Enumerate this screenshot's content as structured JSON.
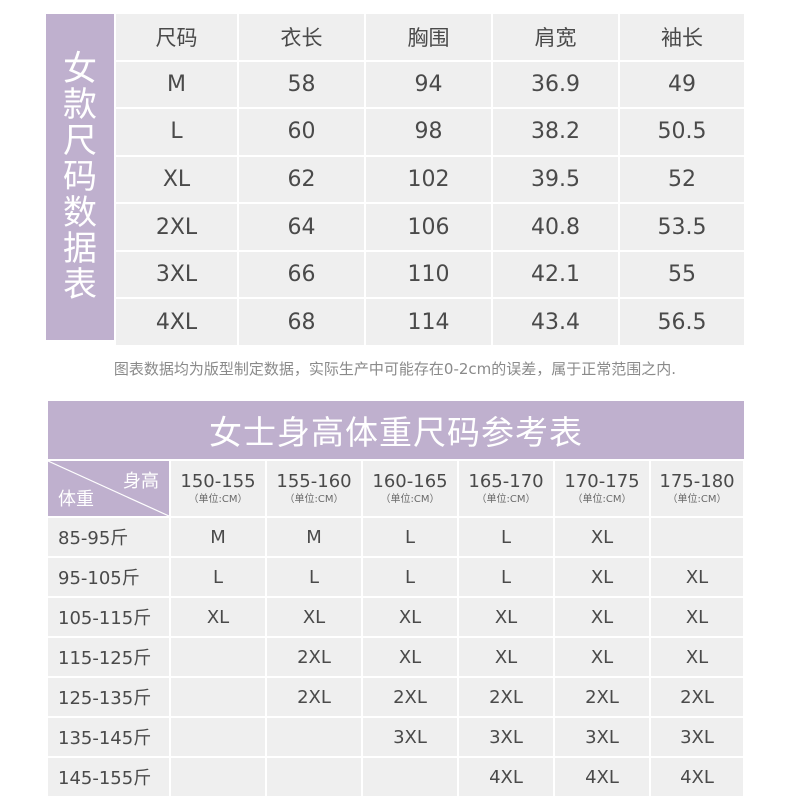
{
  "women_size_table": {
    "side_title": [
      "女",
      "款",
      "尺",
      "码",
      "数",
      "据",
      "表"
    ],
    "headers": [
      "尺码",
      "衣长",
      "胸围",
      "肩宽",
      "袖长"
    ],
    "rows": [
      [
        "M",
        "58",
        "94",
        "36.9",
        "49"
      ],
      [
        "L",
        "60",
        "98",
        "38.2",
        "50.5"
      ],
      [
        "XL",
        "62",
        "102",
        "39.5",
        "52"
      ],
      [
        "2XL",
        "64",
        "106",
        "40.8",
        "53.5"
      ],
      [
        "3XL",
        "66",
        "110",
        "42.1",
        "55"
      ],
      [
        "4XL",
        "68",
        "114",
        "43.4",
        "56.5"
      ]
    ]
  },
  "note": "图表数据均为版型制定数据，实际生产中可能存在0-2cm的误差，属于正常范围之内.",
  "height_weight_table": {
    "title": "女士身高体重尺码参考表",
    "corner_top": "身高",
    "corner_bottom": "体重",
    "height_ranges": [
      "150-155",
      "155-160",
      "160-165",
      "165-170",
      "170-175",
      "175-180"
    ],
    "unit": "（单位:CM）",
    "rows": [
      {
        "weight": "85-95斤",
        "sizes": [
          "M",
          "M",
          "L",
          "L",
          "XL",
          ""
        ]
      },
      {
        "weight": "95-105斤",
        "sizes": [
          "L",
          "L",
          "L",
          "L",
          "XL",
          "XL"
        ]
      },
      {
        "weight": "105-115斤",
        "sizes": [
          "XL",
          "XL",
          "XL",
          "XL",
          "XL",
          "XL"
        ]
      },
      {
        "weight": "115-125斤",
        "sizes": [
          "",
          "2XL",
          "XL",
          "XL",
          "XL",
          "XL"
        ]
      },
      {
        "weight": "125-135斤",
        "sizes": [
          "",
          "2XL",
          "2XL",
          "2XL",
          "2XL",
          "2XL"
        ]
      },
      {
        "weight": "135-145斤",
        "sizes": [
          "",
          "",
          "3XL",
          "3XL",
          "3XL",
          "3XL"
        ]
      },
      {
        "weight": "145-155斤",
        "sizes": [
          "",
          "",
          "",
          "4XL",
          "4XL",
          "4XL"
        ]
      }
    ]
  },
  "colors": {
    "accent_purple": "#bfb0ce",
    "cell_gray": "#efefef",
    "text": "#4a4a4a",
    "note_text": "#8a8a8a"
  }
}
